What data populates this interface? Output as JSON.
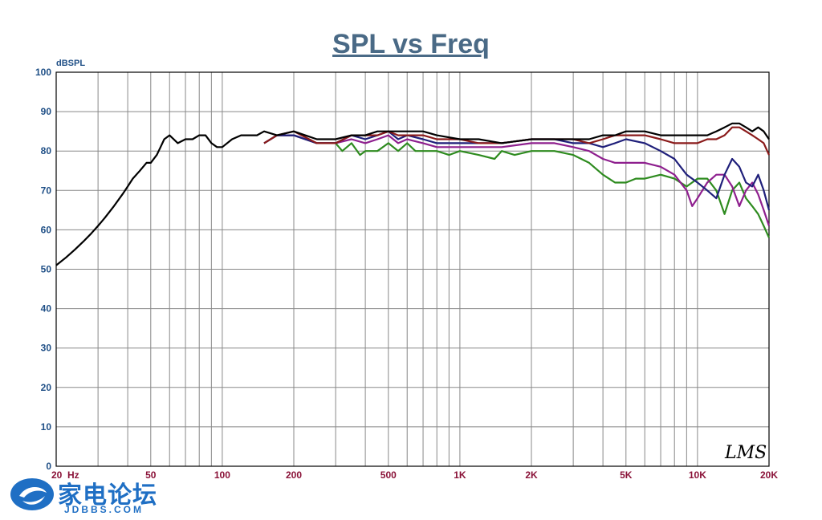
{
  "chart_data": {
    "type": "line",
    "title": "SPL vs Freq",
    "ylabel": "dBSPL",
    "xscale": "log",
    "xlim": [
      20,
      20000
    ],
    "ylim": [
      0,
      100
    ],
    "grid": true,
    "yticks": [
      0,
      10,
      20,
      30,
      40,
      50,
      60,
      70,
      80,
      90,
      100
    ],
    "xticks": [
      {
        "value": 20,
        "label": "20"
      },
      {
        "value": 50,
        "label": "50"
      },
      {
        "value": 100,
        "label": "100"
      },
      {
        "value": 200,
        "label": "200"
      },
      {
        "value": 500,
        "label": "500"
      },
      {
        "value": 1000,
        "label": "1K"
      },
      {
        "value": 2000,
        "label": "2K"
      },
      {
        "value": 5000,
        "label": "5K"
      },
      {
        "value": 10000,
        "label": "10K"
      },
      {
        "value": 20000,
        "label": "20K"
      }
    ],
    "x_unit_label": "Hz",
    "annotation": "LMS",
    "series": [
      {
        "color": "#2e8b1f",
        "points": [
          [
            150,
            82
          ],
          [
            170,
            84
          ],
          [
            200,
            84
          ],
          [
            250,
            82
          ],
          [
            300,
            82
          ],
          [
            320,
            80
          ],
          [
            350,
            82
          ],
          [
            380,
            79
          ],
          [
            400,
            80
          ],
          [
            450,
            80
          ],
          [
            500,
            82
          ],
          [
            550,
            80
          ],
          [
            600,
            82
          ],
          [
            650,
            80
          ],
          [
            700,
            80
          ],
          [
            800,
            80
          ],
          [
            900,
            79
          ],
          [
            1000,
            80
          ],
          [
            1200,
            79
          ],
          [
            1400,
            78
          ],
          [
            1500,
            80
          ],
          [
            1700,
            79
          ],
          [
            2000,
            80
          ],
          [
            2500,
            80
          ],
          [
            3000,
            79
          ],
          [
            3500,
            77
          ],
          [
            4000,
            74
          ],
          [
            4500,
            72
          ],
          [
            5000,
            72
          ],
          [
            5500,
            73
          ],
          [
            6000,
            73
          ],
          [
            7000,
            74
          ],
          [
            8000,
            73
          ],
          [
            9000,
            71
          ],
          [
            10000,
            73
          ],
          [
            11000,
            73
          ],
          [
            12000,
            70
          ],
          [
            13000,
            64
          ],
          [
            14000,
            70
          ],
          [
            15000,
            72
          ],
          [
            16000,
            68
          ],
          [
            17000,
            66
          ],
          [
            18000,
            64
          ],
          [
            19000,
            61
          ],
          [
            20000,
            58
          ]
        ]
      },
      {
        "color": "#8e1f8e",
        "points": [
          [
            150,
            82
          ],
          [
            170,
            84
          ],
          [
            200,
            84
          ],
          [
            250,
            82
          ],
          [
            300,
            82
          ],
          [
            350,
            83
          ],
          [
            400,
            82
          ],
          [
            450,
            83
          ],
          [
            500,
            84
          ],
          [
            550,
            82
          ],
          [
            600,
            83
          ],
          [
            700,
            82
          ],
          [
            800,
            81
          ],
          [
            1000,
            81
          ],
          [
            1200,
            81
          ],
          [
            1500,
            81
          ],
          [
            2000,
            82
          ],
          [
            2500,
            82
          ],
          [
            3000,
            81
          ],
          [
            3500,
            80
          ],
          [
            4000,
            78
          ],
          [
            4500,
            77
          ],
          [
            5000,
            77
          ],
          [
            6000,
            77
          ],
          [
            7000,
            76
          ],
          [
            8000,
            74
          ],
          [
            9000,
            70
          ],
          [
            9500,
            66
          ],
          [
            10000,
            68
          ],
          [
            11000,
            72
          ],
          [
            12000,
            74
          ],
          [
            13000,
            74
          ],
          [
            14000,
            71
          ],
          [
            15000,
            66
          ],
          [
            16000,
            70
          ],
          [
            17000,
            72
          ],
          [
            18000,
            69
          ],
          [
            19000,
            65
          ],
          [
            20000,
            61
          ]
        ]
      },
      {
        "color": "#1f1f7a",
        "points": [
          [
            150,
            82
          ],
          [
            170,
            84
          ],
          [
            200,
            84
          ],
          [
            250,
            82
          ],
          [
            300,
            82
          ],
          [
            350,
            84
          ],
          [
            400,
            83
          ],
          [
            450,
            84
          ],
          [
            500,
            85
          ],
          [
            550,
            83
          ],
          [
            600,
            84
          ],
          [
            700,
            83
          ],
          [
            800,
            82
          ],
          [
            1000,
            82
          ],
          [
            1200,
            82
          ],
          [
            1500,
            82
          ],
          [
            2000,
            83
          ],
          [
            2500,
            83
          ],
          [
            3000,
            82
          ],
          [
            3500,
            82
          ],
          [
            4000,
            81
          ],
          [
            4500,
            82
          ],
          [
            5000,
            83
          ],
          [
            6000,
            82
          ],
          [
            7000,
            80
          ],
          [
            8000,
            78
          ],
          [
            9000,
            74
          ],
          [
            10000,
            72
          ],
          [
            11000,
            70
          ],
          [
            12000,
            68
          ],
          [
            13000,
            74
          ],
          [
            14000,
            78
          ],
          [
            15000,
            76
          ],
          [
            16000,
            72
          ],
          [
            17000,
            71
          ],
          [
            18000,
            74
          ],
          [
            19000,
            70
          ],
          [
            20000,
            65
          ]
        ]
      },
      {
        "color": "#8a1a1a",
        "points": [
          [
            150,
            82
          ],
          [
            170,
            84
          ],
          [
            200,
            85
          ],
          [
            250,
            82
          ],
          [
            300,
            82
          ],
          [
            350,
            84
          ],
          [
            400,
            84
          ],
          [
            450,
            84
          ],
          [
            500,
            85
          ],
          [
            550,
            84
          ],
          [
            600,
            84
          ],
          [
            700,
            84
          ],
          [
            800,
            83
          ],
          [
            1000,
            83
          ],
          [
            1200,
            82
          ],
          [
            1500,
            82
          ],
          [
            2000,
            83
          ],
          [
            2500,
            83
          ],
          [
            3000,
            83
          ],
          [
            3500,
            82
          ],
          [
            4000,
            83
          ],
          [
            4500,
            84
          ],
          [
            5000,
            84
          ],
          [
            6000,
            84
          ],
          [
            7000,
            83
          ],
          [
            8000,
            82
          ],
          [
            9000,
            82
          ],
          [
            10000,
            82
          ],
          [
            11000,
            83
          ],
          [
            12000,
            83
          ],
          [
            13000,
            84
          ],
          [
            14000,
            86
          ],
          [
            15000,
            86
          ],
          [
            16000,
            85
          ],
          [
            17000,
            84
          ],
          [
            18000,
            83
          ],
          [
            19000,
            82
          ],
          [
            20000,
            79
          ]
        ]
      },
      {
        "color": "#000000",
        "points": [
          [
            20,
            51
          ],
          [
            22,
            53
          ],
          [
            24,
            55
          ],
          [
            26,
            57
          ],
          [
            28,
            59
          ],
          [
            30,
            61
          ],
          [
            32,
            63
          ],
          [
            35,
            66
          ],
          [
            38,
            69
          ],
          [
            40,
            71
          ],
          [
            42,
            73
          ],
          [
            45,
            75
          ],
          [
            48,
            77
          ],
          [
            50,
            77
          ],
          [
            53,
            79
          ],
          [
            55,
            81
          ],
          [
            57,
            83
          ],
          [
            60,
            84
          ],
          [
            65,
            82
          ],
          [
            70,
            83
          ],
          [
            75,
            83
          ],
          [
            80,
            84
          ],
          [
            85,
            84
          ],
          [
            90,
            82
          ],
          [
            95,
            81
          ],
          [
            100,
            81
          ],
          [
            110,
            83
          ],
          [
            120,
            84
          ],
          [
            130,
            84
          ],
          [
            140,
            84
          ],
          [
            150,
            85
          ],
          [
            170,
            84
          ],
          [
            200,
            85
          ],
          [
            250,
            83
          ],
          [
            300,
            83
          ],
          [
            350,
            84
          ],
          [
            400,
            84
          ],
          [
            450,
            85
          ],
          [
            500,
            85
          ],
          [
            600,
            85
          ],
          [
            700,
            85
          ],
          [
            800,
            84
          ],
          [
            1000,
            83
          ],
          [
            1200,
            83
          ],
          [
            1500,
            82
          ],
          [
            2000,
            83
          ],
          [
            2500,
            83
          ],
          [
            3000,
            83
          ],
          [
            3500,
            83
          ],
          [
            4000,
            84
          ],
          [
            4500,
            84
          ],
          [
            5000,
            85
          ],
          [
            6000,
            85
          ],
          [
            7000,
            84
          ],
          [
            8000,
            84
          ],
          [
            9000,
            84
          ],
          [
            10000,
            84
          ],
          [
            11000,
            84
          ],
          [
            12000,
            85
          ],
          [
            13000,
            86
          ],
          [
            14000,
            87
          ],
          [
            15000,
            87
          ],
          [
            16000,
            86
          ],
          [
            17000,
            85
          ],
          [
            18000,
            86
          ],
          [
            19000,
            85
          ],
          [
            20000,
            83
          ]
        ]
      }
    ]
  },
  "watermark": {
    "brand": "家电论坛",
    "site": "JDBBS.COM"
  }
}
